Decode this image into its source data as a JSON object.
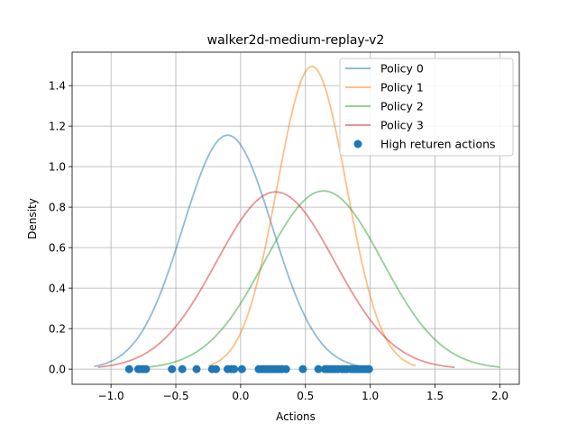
{
  "chart_data": {
    "type": "line",
    "title": "walker2d-medium-replay-v2",
    "xlabel": "Actions",
    "ylabel": "Density",
    "xlim": [
      -1.3,
      2.15
    ],
    "ylim": [
      -0.075,
      1.565
    ],
    "xticks": [
      -1.0,
      -0.5,
      0.0,
      0.5,
      1.0,
      1.5,
      2.0
    ],
    "xtick_labels": [
      "−1.0",
      "−0.5",
      "0.0",
      "0.5",
      "1.0",
      "1.5",
      "2.0"
    ],
    "yticks": [
      0.0,
      0.2,
      0.4,
      0.6,
      0.8,
      1.0,
      1.2,
      1.4
    ],
    "ytick_labels": [
      "0.0",
      "0.2",
      "0.4",
      "0.6",
      "0.8",
      "1.0",
      "1.2",
      "1.4"
    ],
    "grid": true,
    "legend_position": "top-right",
    "series": [
      {
        "name": "Policy 0",
        "color": "#1f77b4",
        "mean": -0.1,
        "peak": 1.155,
        "x_range": [
          -1.13,
          0.93
        ]
      },
      {
        "name": "Policy 1",
        "color": "#ff7f0e",
        "mean": 0.55,
        "peak": 1.495,
        "x_range": [
          -0.25,
          1.35
        ]
      },
      {
        "name": "Policy 2",
        "color": "#2ca02c",
        "mean": 0.64,
        "peak": 0.88,
        "x_range": [
          -0.72,
          2.0
        ]
      },
      {
        "name": "Policy 3",
        "color": "#d62728",
        "mean": 0.27,
        "peak": 0.875,
        "x_range": [
          -1.1,
          1.65
        ]
      }
    ],
    "scatter": {
      "name": "High returen actions",
      "color": "#1f77b4",
      "y": 0.0,
      "x": [
        -0.86,
        -0.79,
        -0.77,
        -0.75,
        -0.73,
        -0.53,
        -0.45,
        -0.34,
        -0.22,
        -0.19,
        -0.1,
        -0.07,
        -0.05,
        0.01,
        0.14,
        0.16,
        0.18,
        0.2,
        0.22,
        0.24,
        0.26,
        0.28,
        0.3,
        0.32,
        0.35,
        0.48,
        0.6,
        0.65,
        0.67,
        0.69,
        0.71,
        0.73,
        0.75,
        0.78,
        0.8,
        0.82,
        0.85,
        0.87,
        0.89,
        0.91,
        0.93,
        0.95,
        0.97,
        0.99
      ]
    }
  }
}
